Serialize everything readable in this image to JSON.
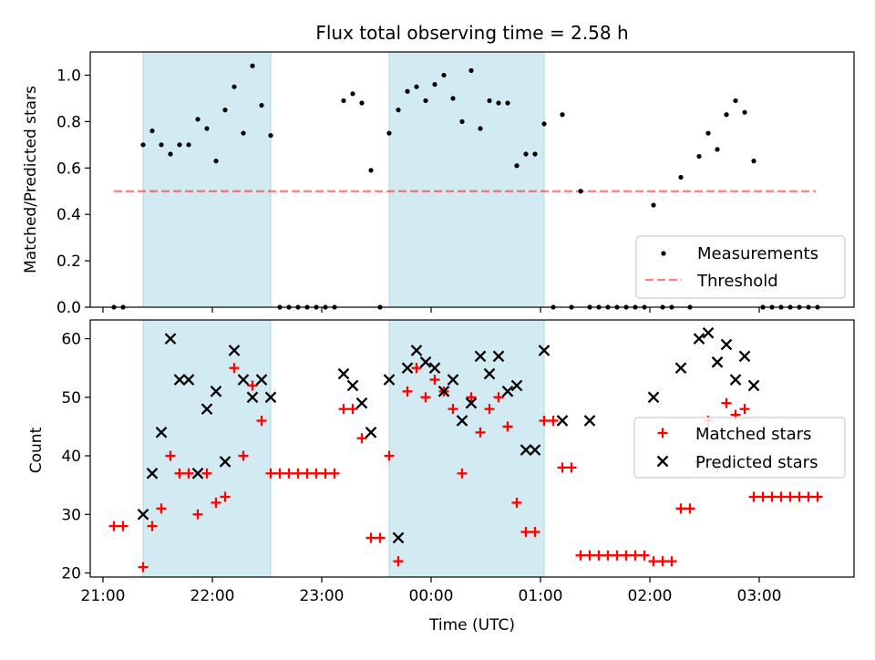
{
  "title": "Flux total observing time = 2.58 h",
  "colors": {
    "shade": "#add8e6",
    "measure": "#000000",
    "threshold": "#ff0000",
    "matched": "#ff0000",
    "predicted": "#000000"
  },
  "chart_data": [
    {
      "type": "scatter",
      "ylabel": "Matched/Predicted stars",
      "ylim": [
        0,
        1.1
      ],
      "yticks": [
        "0.0",
        "0.2",
        "0.4",
        "0.6",
        "0.8",
        "1.0"
      ],
      "shaded_intervals": [
        [
          "21:22",
          "22:32"
        ],
        [
          "23:37",
          "00:62"
        ]
      ],
      "legend": {
        "position": "lower right",
        "entries": [
          "Measurements",
          "Threshold"
        ]
      },
      "threshold": {
        "y": 0.5,
        "x_start": "21:06",
        "x_end": "03:31"
      },
      "series": [
        {
          "name": "Measurements",
          "points": [
            [
              "21:06",
              0
            ],
            [
              "21:11",
              0
            ],
            [
              "21:22",
              0.7
            ],
            [
              "21:27",
              0.76
            ],
            [
              "21:32",
              0.7
            ],
            [
              "21:37",
              0.66
            ],
            [
              "21:42",
              0.7
            ],
            [
              "21:47",
              0.7
            ],
            [
              "21:52",
              0.81
            ],
            [
              "21:57",
              0.77
            ],
            [
              "22:02",
              0.63
            ],
            [
              "22:07",
              0.85
            ],
            [
              "22:12",
              0.95
            ],
            [
              "22:17",
              0.75
            ],
            [
              "22:22",
              1.04
            ],
            [
              "22:27",
              0.87
            ],
            [
              "22:32",
              0.74
            ],
            [
              "22:37",
              0
            ],
            [
              "22:42",
              0
            ],
            [
              "22:47",
              0
            ],
            [
              "22:52",
              0
            ],
            [
              "22:57",
              0
            ],
            [
              "23:02",
              0
            ],
            [
              "23:07",
              0
            ],
            [
              "23:12",
              0.89
            ],
            [
              "23:17",
              0.92
            ],
            [
              "23:22",
              0.88
            ],
            [
              "23:27",
              0.59
            ],
            [
              "23:32",
              0
            ],
            [
              "23:37",
              0.75
            ],
            [
              "23:42",
              0.85
            ],
            [
              "23:47",
              0.93
            ],
            [
              "23:52",
              0.95
            ],
            [
              "23:57",
              0.89
            ],
            [
              "00:02",
              0.96
            ],
            [
              "00:07",
              1.0
            ],
            [
              "00:12",
              0.9
            ],
            [
              "00:17",
              0.8
            ],
            [
              "00:22",
              1.02
            ],
            [
              "00:27",
              0.77
            ],
            [
              "00:32",
              0.89
            ],
            [
              "00:37",
              0.88
            ],
            [
              "00:42",
              0.88
            ],
            [
              "00:47",
              0.61
            ],
            [
              "00:52",
              0.66
            ],
            [
              "00:57",
              0.66
            ],
            [
              "01:02",
              0.79
            ],
            [
              "01:07",
              0
            ],
            [
              "01:12",
              0.83
            ],
            [
              "01:17",
              0
            ],
            [
              "01:22",
              0.5
            ],
            [
              "01:27",
              0
            ],
            [
              "01:32",
              0
            ],
            [
              "01:37",
              0
            ],
            [
              "01:42",
              0
            ],
            [
              "01:47",
              0
            ],
            [
              "01:52",
              0
            ],
            [
              "01:57",
              0
            ],
            [
              "02:02",
              0.44
            ],
            [
              "02:07",
              0
            ],
            [
              "02:12",
              0
            ],
            [
              "02:17",
              0.56
            ],
            [
              "02:22",
              0
            ],
            [
              "02:27",
              0.65
            ],
            [
              "02:32",
              0.75
            ],
            [
              "02:37",
              0.68
            ],
            [
              "02:42",
              0.83
            ],
            [
              "02:47",
              0.89
            ],
            [
              "02:52",
              0.84
            ],
            [
              "02:57",
              0.63
            ],
            [
              "03:02",
              0
            ],
            [
              "03:07",
              0
            ],
            [
              "03:12",
              0
            ],
            [
              "03:17",
              0
            ],
            [
              "03:22",
              0
            ],
            [
              "03:27",
              0
            ],
            [
              "03:32",
              0
            ]
          ]
        }
      ]
    },
    {
      "type": "scatter",
      "xlabel": "Time (UTC)",
      "ylabel": "Count",
      "ylim": [
        19.3,
        63.2
      ],
      "yticks": [
        "20",
        "30",
        "40",
        "50",
        "60"
      ],
      "xticks": [
        "21:00",
        "22:00",
        "23:00",
        "00:00",
        "01:00",
        "02:00",
        "03:00"
      ],
      "shaded_intervals": [
        [
          "21:22",
          "22:32"
        ],
        [
          "23:37",
          "00:62"
        ]
      ],
      "legend": {
        "position": "center right",
        "entries": [
          "Matched stars",
          "Predicted stars"
        ]
      },
      "series": [
        {
          "name": "Matched stars",
          "marker": "+",
          "points": [
            [
              "21:06",
              28
            ],
            [
              "21:11",
              28
            ],
            [
              "21:22",
              21
            ],
            [
              "21:27",
              28
            ],
            [
              "21:32",
              31
            ],
            [
              "21:37",
              40
            ],
            [
              "21:42",
              37
            ],
            [
              "21:47",
              37
            ],
            [
              "21:52",
              30
            ],
            [
              "21:57",
              37
            ],
            [
              "22:02",
              32
            ],
            [
              "22:07",
              33
            ],
            [
              "22:12",
              55
            ],
            [
              "22:17",
              40
            ],
            [
              "22:22",
              52
            ],
            [
              "22:27",
              46
            ],
            [
              "22:32",
              37
            ],
            [
              "22:37",
              37
            ],
            [
              "22:42",
              37
            ],
            [
              "22:47",
              37
            ],
            [
              "22:52",
              37
            ],
            [
              "22:57",
              37
            ],
            [
              "23:02",
              37
            ],
            [
              "23:07",
              37
            ],
            [
              "23:12",
              48
            ],
            [
              "23:17",
              48
            ],
            [
              "23:22",
              43
            ],
            [
              "23:27",
              26
            ],
            [
              "23:32",
              26
            ],
            [
              "23:37",
              40
            ],
            [
              "23:42",
              22
            ],
            [
              "23:47",
              51
            ],
            [
              "23:52",
              55
            ],
            [
              "23:57",
              50
            ],
            [
              "00:02",
              53
            ],
            [
              "00:07",
              51
            ],
            [
              "00:12",
              48
            ],
            [
              "00:17",
              37
            ],
            [
              "00:22",
              50
            ],
            [
              "00:27",
              44
            ],
            [
              "00:32",
              48
            ],
            [
              "00:37",
              50
            ],
            [
              "00:42",
              45
            ],
            [
              "00:47",
              32
            ],
            [
              "00:52",
              27
            ],
            [
              "00:57",
              27
            ],
            [
              "01:02",
              46
            ],
            [
              "01:07",
              46
            ],
            [
              "01:12",
              38
            ],
            [
              "01:17",
              38
            ],
            [
              "01:22",
              23
            ],
            [
              "01:27",
              23
            ],
            [
              "01:32",
              23
            ],
            [
              "01:37",
              23
            ],
            [
              "01:42",
              23
            ],
            [
              "01:47",
              23
            ],
            [
              "01:52",
              23
            ],
            [
              "01:57",
              23
            ],
            [
              "02:02",
              22
            ],
            [
              "02:07",
              22
            ],
            [
              "02:12",
              22
            ],
            [
              "02:17",
              31
            ],
            [
              "02:22",
              31
            ],
            [
              "02:27",
              39
            ],
            [
              "02:32",
              46
            ],
            [
              "02:37",
              38
            ],
            [
              "02:42",
              49
            ],
            [
              "02:47",
              47
            ],
            [
              "02:52",
              48
            ],
            [
              "02:57",
              33
            ],
            [
              "03:02",
              33
            ],
            [
              "03:07",
              33
            ],
            [
              "03:12",
              33
            ],
            [
              "03:17",
              33
            ],
            [
              "03:22",
              33
            ],
            [
              "03:27",
              33
            ],
            [
              "03:32",
              33
            ]
          ]
        },
        {
          "name": "Predicted stars",
          "marker": "x",
          "points": [
            [
              "21:22",
              30
            ],
            [
              "21:27",
              37
            ],
            [
              "21:32",
              44
            ],
            [
              "21:37",
              60
            ],
            [
              "21:42",
              53
            ],
            [
              "21:47",
              53
            ],
            [
              "21:52",
              37
            ],
            [
              "21:57",
              48
            ],
            [
              "22:02",
              51
            ],
            [
              "22:07",
              39
            ],
            [
              "22:12",
              58
            ],
            [
              "22:17",
              53
            ],
            [
              "22:22",
              50
            ],
            [
              "22:27",
              53
            ],
            [
              "22:32",
              50
            ],
            [
              "23:12",
              54
            ],
            [
              "23:17",
              52
            ],
            [
              "23:22",
              49
            ],
            [
              "23:27",
              44
            ],
            [
              "23:37",
              53
            ],
            [
              "23:42",
              26
            ],
            [
              "23:47",
              55
            ],
            [
              "23:52",
              58
            ],
            [
              "23:57",
              56
            ],
            [
              "00:02",
              55
            ],
            [
              "00:07",
              51
            ],
            [
              "00:12",
              53
            ],
            [
              "00:17",
              46
            ],
            [
              "00:22",
              49
            ],
            [
              "00:27",
              57
            ],
            [
              "00:32",
              54
            ],
            [
              "00:37",
              57
            ],
            [
              "00:42",
              51
            ],
            [
              "00:47",
              52
            ],
            [
              "00:52",
              41
            ],
            [
              "00:57",
              41
            ],
            [
              "01:02",
              58
            ],
            [
              "01:12",
              46
            ],
            [
              "01:27",
              46
            ],
            [
              "02:02",
              50
            ],
            [
              "02:17",
              55
            ],
            [
              "02:27",
              60
            ],
            [
              "02:32",
              61
            ],
            [
              "02:37",
              56
            ],
            [
              "02:42",
              59
            ],
            [
              "02:47",
              53
            ],
            [
              "02:52",
              57
            ],
            [
              "02:57",
              52
            ]
          ]
        }
      ]
    }
  ]
}
